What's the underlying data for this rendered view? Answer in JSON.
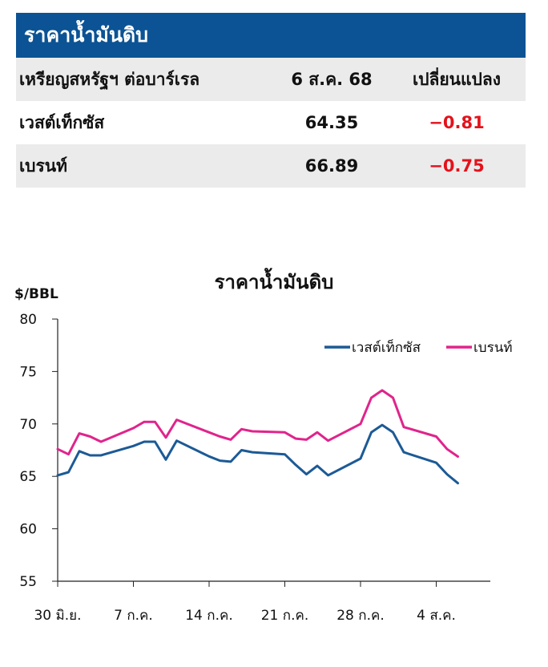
{
  "table": {
    "title": "ราคาน้ำมันดิบ",
    "headers": [
      "เหรียญสหรัฐฯ ต่อบาร์เรล",
      "6 ส.ค. 68",
      "เปลี่ยนแปลง"
    ],
    "rows": [
      {
        "name": "เวสต์เท็กซัส",
        "price": "64.35",
        "change": "−0.81"
      },
      {
        "name": "เบรนท์",
        "price": "66.89",
        "change": "−0.75"
      }
    ],
    "colors": {
      "header_bg": "#0b5394",
      "negative": "#e3121b"
    }
  },
  "chart_data": {
    "type": "line",
    "title": "ราคาน้ำมันดิบ",
    "ylabel": "$/BBL",
    "ylim": [
      55,
      80
    ],
    "yticks": [
      "80",
      "75",
      "70",
      "65",
      "60",
      "55"
    ],
    "xlim": [
      "2025-06-30",
      "2025-08-09"
    ],
    "xtick_dates": [
      "2025-06-30",
      "2025-07-07",
      "2025-07-14",
      "2025-07-21",
      "2025-07-28",
      "2025-08-04"
    ],
    "xtick_labels": [
      "30 มิ.ย.",
      "7 ก.ค.",
      "14 ก.ค.",
      "21 ก.ค.",
      "28 ก.ค.",
      "4 ส.ค."
    ],
    "legend_position": "top-right",
    "grid": false,
    "series": [
      {
        "name": "เวสต์เท็กซัส",
        "color": "#1c5a96",
        "points": [
          [
            "2025-06-30",
            65.1
          ],
          [
            "2025-07-01",
            65.4
          ],
          [
            "2025-07-02",
            67.4
          ],
          [
            "2025-07-03",
            67.0
          ],
          [
            "2025-07-04",
            67.0
          ],
          [
            "2025-07-07",
            67.9
          ],
          [
            "2025-07-08",
            68.3
          ],
          [
            "2025-07-09",
            68.3
          ],
          [
            "2025-07-10",
            66.6
          ],
          [
            "2025-07-11",
            68.4
          ],
          [
            "2025-07-14",
            66.9
          ],
          [
            "2025-07-15",
            66.5
          ],
          [
            "2025-07-16",
            66.4
          ],
          [
            "2025-07-17",
            67.5
          ],
          [
            "2025-07-18",
            67.3
          ],
          [
            "2025-07-21",
            67.1
          ],
          [
            "2025-07-22",
            66.1
          ],
          [
            "2025-07-23",
            65.2
          ],
          [
            "2025-07-24",
            66.0
          ],
          [
            "2025-07-25",
            65.1
          ],
          [
            "2025-07-28",
            66.7
          ],
          [
            "2025-07-29",
            69.2
          ],
          [
            "2025-07-30",
            69.9
          ],
          [
            "2025-07-31",
            69.2
          ],
          [
            "2025-08-01",
            67.3
          ],
          [
            "2025-08-04",
            66.3
          ],
          [
            "2025-08-05",
            65.2
          ],
          [
            "2025-08-06",
            64.35
          ]
        ]
      },
      {
        "name": "เบรนท์",
        "color": "#e0248c",
        "points": [
          [
            "2025-06-30",
            67.6
          ],
          [
            "2025-07-01",
            67.1
          ],
          [
            "2025-07-02",
            69.1
          ],
          [
            "2025-07-03",
            68.8
          ],
          [
            "2025-07-04",
            68.3
          ],
          [
            "2025-07-07",
            69.6
          ],
          [
            "2025-07-08",
            70.2
          ],
          [
            "2025-07-09",
            70.2
          ],
          [
            "2025-07-10",
            68.7
          ],
          [
            "2025-07-11",
            70.4
          ],
          [
            "2025-07-14",
            69.2
          ],
          [
            "2025-07-15",
            68.8
          ],
          [
            "2025-07-16",
            68.5
          ],
          [
            "2025-07-17",
            69.5
          ],
          [
            "2025-07-18",
            69.3
          ],
          [
            "2025-07-21",
            69.2
          ],
          [
            "2025-07-22",
            68.6
          ],
          [
            "2025-07-23",
            68.5
          ],
          [
            "2025-07-24",
            69.2
          ],
          [
            "2025-07-25",
            68.4
          ],
          [
            "2025-07-28",
            70.0
          ],
          [
            "2025-07-29",
            72.5
          ],
          [
            "2025-07-30",
            73.2
          ],
          [
            "2025-07-31",
            72.5
          ],
          [
            "2025-08-01",
            69.7
          ],
          [
            "2025-08-04",
            68.8
          ],
          [
            "2025-08-05",
            67.6
          ],
          [
            "2025-08-06",
            66.89
          ]
        ]
      }
    ]
  }
}
